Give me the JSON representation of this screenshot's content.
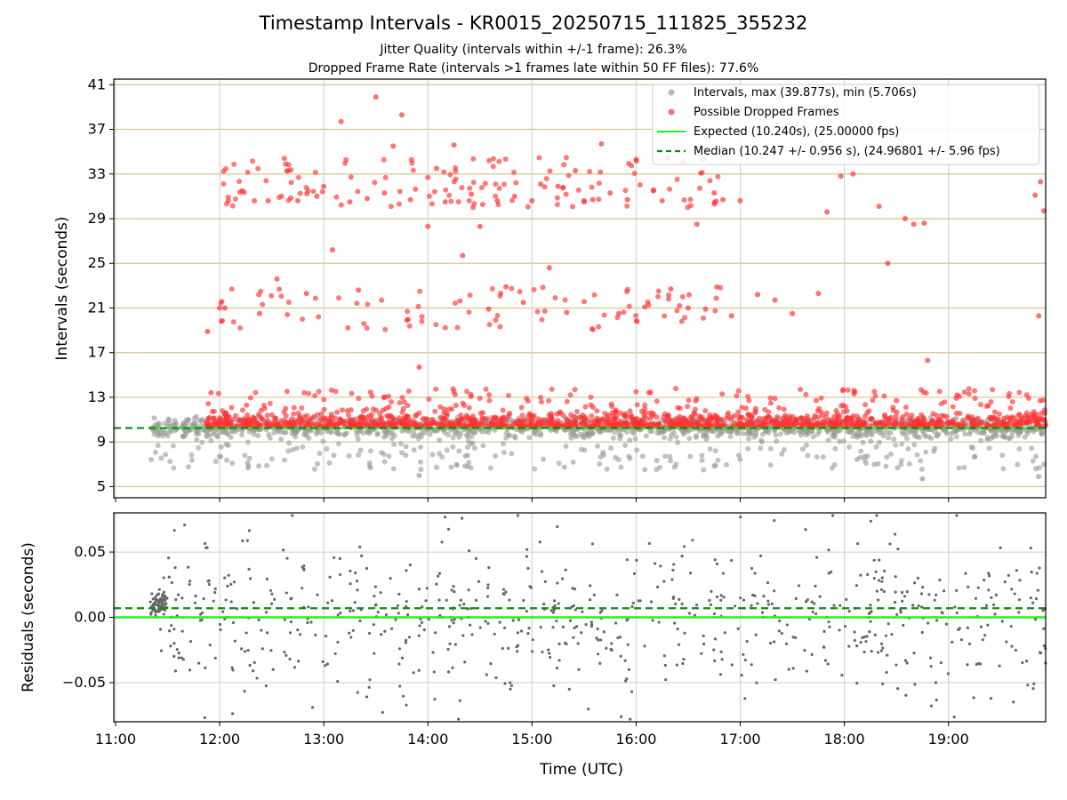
{
  "chart_data": [
    {
      "type": "scatter",
      "title": "Timestamp Intervals - KR0015_20250715_111825_355232",
      "subtitle_1": "Jitter Quality (intervals within +/-1 frame): 26.3%",
      "subtitle_2": "Dropped Frame Rate (intervals >1 frames late within 50 FF files): 77.6%",
      "xlabel": "",
      "ylabel": "Intervals (seconds)",
      "x_tick_labels": [
        "11:00",
        "12:00",
        "13:00",
        "14:00",
        "15:00",
        "16:00",
        "17:00",
        "18:00",
        "19:00"
      ],
      "xlim": [
        "10:59",
        "19:56"
      ],
      "ylim": [
        4,
        41.5
      ],
      "y_ticks": [
        5,
        9,
        13,
        17,
        21,
        25,
        29,
        33,
        37,
        41
      ],
      "grid": true,
      "legend_position": "top-right",
      "legend": [
        "Intervals, max (39.877s), min (5.706s)",
        "Possible Dropped Frames",
        "Expected (10.240s), (25.00000 fps)",
        "Median (10.247 +/- 0.956 s), (24.96801 +/- 5.96 fps)"
      ],
      "series": [
        {
          "name": "Intervals, max (39.877s), min (5.706s)",
          "kind": "scatter",
          "color": "#999999",
          "note": "dense band of points around 9.5-11 s spanning 11:20-19:56"
        },
        {
          "name": "Possible Dropped Frames",
          "kind": "scatter",
          "color": "#ff3333",
          "note": "points above ~10.4 s from 11:52-19:56, scattered up to ~40 s"
        },
        {
          "name": "Expected (10.240s), (25.00000 fps)",
          "kind": "hline",
          "value": 10.24,
          "color": "#22ee22"
        },
        {
          "name": "Median (10.247 +/- 0.956 s), (24.96801 +/- 5.96 fps)",
          "kind": "hline",
          "value": 10.247,
          "color": "#118811",
          "dashed": true
        }
      ],
      "sample_points": {
        "dropped": [
          [
            "11:55",
            13.4
          ],
          [
            "11:53",
            18.9
          ],
          [
            "12:00",
            21.0
          ],
          [
            "12:03",
            21.0
          ],
          [
            "12:05",
            30.6
          ],
          [
            "12:13",
            31.5
          ],
          [
            "12:20",
            30.6
          ],
          [
            "12:23",
            20.5
          ],
          [
            "12:28",
            30.6
          ],
          [
            "12:33",
            23.6
          ],
          [
            "12:38",
            33.9
          ],
          [
            "12:45",
            30.6
          ],
          [
            "12:50",
            22.3
          ],
          [
            "12:56",
            31.0
          ],
          [
            "13:00",
            31.9
          ],
          [
            "13:05",
            26.2
          ],
          [
            "13:10",
            37.7
          ],
          [
            "13:15",
            30.5
          ],
          [
            "13:20",
            22.6
          ],
          [
            "13:25",
            30.8
          ],
          [
            "13:30",
            39.9
          ],
          [
            "13:35",
            31.3
          ],
          [
            "13:40",
            35.5
          ],
          [
            "13:45",
            38.3
          ],
          [
            "13:50",
            30.7
          ],
          [
            "13:55",
            15.7
          ],
          [
            "14:00",
            28.3
          ],
          [
            "14:05",
            33.5
          ],
          [
            "14:10",
            30.5
          ],
          [
            "14:15",
            35.6
          ],
          [
            "14:20",
            25.7
          ],
          [
            "14:25",
            31.2
          ],
          [
            "14:30",
            28.3
          ],
          [
            "14:35",
            20.9
          ],
          [
            "14:40",
            30.6
          ],
          [
            "14:45",
            22.9
          ],
          [
            "14:50",
            31.0
          ],
          [
            "14:55",
            21.5
          ],
          [
            "15:00",
            30.6
          ],
          [
            "15:05",
            32.1
          ],
          [
            "15:10",
            24.6
          ],
          [
            "15:15",
            31.9
          ],
          [
            "15:20",
            20.6
          ],
          [
            "15:25",
            33.3
          ],
          [
            "15:30",
            30.6
          ],
          [
            "15:35",
            30.7
          ],
          [
            "15:40",
            35.7
          ],
          [
            "15:45",
            31.3
          ],
          [
            "15:50",
            20.5
          ],
          [
            "15:55",
            30.7
          ],
          [
            "16:00",
            34.3
          ],
          [
            "16:05",
            21.1
          ],
          [
            "16:10",
            31.5
          ],
          [
            "16:15",
            30.6
          ],
          [
            "16:20",
            22.7
          ],
          [
            "16:25",
            21.2
          ],
          [
            "16:30",
            21.0
          ],
          [
            "16:35",
            28.5
          ],
          [
            "16:40",
            20.9
          ],
          [
            "16:45",
            31.3
          ],
          [
            "16:50",
            30.7
          ],
          [
            "16:55",
            20.3
          ],
          [
            "17:00",
            30.6
          ],
          [
            "17:10",
            22.2
          ],
          [
            "17:20",
            21.7
          ],
          [
            "17:30",
            20.5
          ],
          [
            "17:45",
            22.3
          ],
          [
            "17:50",
            29.6
          ],
          [
            "17:58",
            32.8
          ],
          [
            "18:05",
            33.0
          ],
          [
            "18:20",
            30.1
          ],
          [
            "18:25",
            25.0
          ],
          [
            "18:30",
            12.7
          ],
          [
            "18:35",
            29.0
          ],
          [
            "18:40",
            28.5
          ],
          [
            "18:46",
            28.6
          ],
          [
            "18:48",
            16.3
          ],
          [
            "19:05",
            13.2
          ],
          [
            "19:50",
            31.1
          ],
          [
            "19:52",
            20.3
          ],
          [
            "19:53",
            32.3
          ],
          [
            "19:55",
            29.7
          ]
        ],
        "intervals_min_examples": [
          [
            "13:55",
            6.0
          ],
          [
            "18:45",
            5.7
          ],
          [
            "19:52",
            5.9
          ]
        ]
      }
    },
    {
      "type": "scatter",
      "title": "",
      "xlabel": "Time (UTC)",
      "ylabel": "Residuals (seconds)",
      "x_tick_labels": [
        "11:00",
        "12:00",
        "13:00",
        "14:00",
        "15:00",
        "16:00",
        "17:00",
        "18:00",
        "19:00"
      ],
      "xlim": [
        "10:59",
        "19:56"
      ],
      "ylim": [
        -0.08,
        0.08
      ],
      "y_tick_labels": [
        "0.05",
        "0.00",
        "−0.05"
      ],
      "y_ticks": [
        0.05,
        0.0,
        -0.05
      ],
      "grid": true,
      "series": [
        {
          "name": "",
          "kind": "scatter",
          "color": "#666666",
          "note": "residual points spread across full range, dense cluster near 0.005-0.02 at 11:20-11:30"
        },
        {
          "name": "",
          "kind": "hline",
          "value": 0.0,
          "color": "#22ee22"
        },
        {
          "name": "",
          "kind": "hline",
          "value": 0.007,
          "color": "#118811",
          "dashed": true
        }
      ]
    }
  ]
}
